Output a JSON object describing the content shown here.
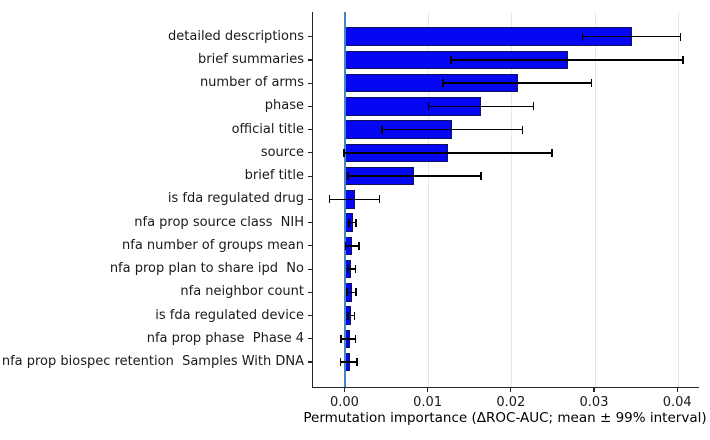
{
  "chart_data": {
    "type": "bar",
    "orientation": "horizontal",
    "title": "",
    "xlabel": "Permutation importance (ΔROC-AUC; mean ± 99% interval)",
    "ylabel": "",
    "xlim": [
      -0.0039,
      0.0425
    ],
    "xticks": [
      0.0,
      0.01,
      0.02,
      0.03,
      0.04
    ],
    "xtick_labels": [
      "0.00",
      "0.01",
      "0.02",
      "0.03",
      "0.04"
    ],
    "grid": "vertical-light-gray",
    "legend": "none",
    "categories": [
      "detailed descriptions",
      "brief summaries",
      "number of arms",
      "phase",
      "official title",
      "source",
      "brief title",
      "is fda regulated drug",
      "nfa prop source class  NIH",
      "nfa number of groups mean",
      "nfa prop plan to share ipd  No",
      "nfa neighbor count",
      "is fda regulated device",
      "nfa prop phase  Phase 4",
      "nfa prop biospec retention  Samples With DNA"
    ],
    "values": [
      0.0345,
      0.0267,
      0.0207,
      0.0163,
      0.0128,
      0.0123,
      0.0083,
      0.0012,
      0.0009,
      0.0008,
      0.0007,
      0.0008,
      0.0007,
      0.0006,
      0.0005
    ],
    "err_lo": [
      0.0285,
      0.0127,
      0.0117,
      0.01,
      0.0044,
      -0.0002,
      0.0003,
      -0.0019,
      0.0004,
      0.0,
      0.0003,
      0.0002,
      0.0003,
      -0.0005,
      -0.0006
    ],
    "err_hi": [
      0.0403,
      0.0406,
      0.0296,
      0.0226,
      0.0213,
      0.0248,
      0.0163,
      0.0041,
      0.0013,
      0.0016,
      0.0012,
      0.0013,
      0.0011,
      0.0012,
      0.0014
    ],
    "colors": {
      "bar_fill": "#0506f2",
      "bar_edge": "#11125e",
      "error_bar": "#000000",
      "zero_line": "#3b87c9",
      "gridline": "#e7e7e7",
      "axis": "#262626",
      "text": "#1a1a1a"
    }
  }
}
